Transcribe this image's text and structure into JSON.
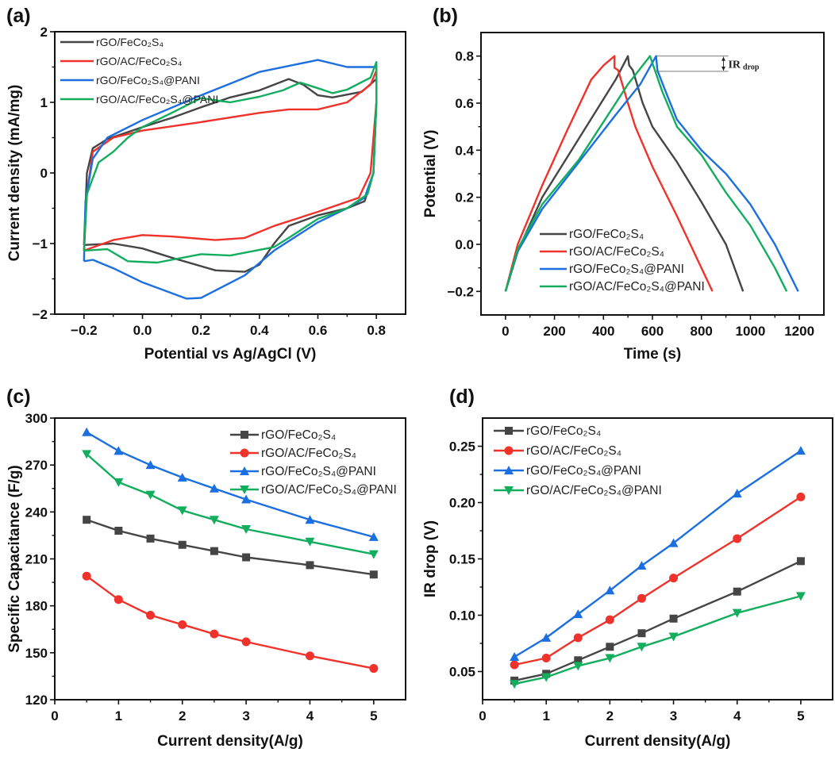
{
  "colors": {
    "rGO/FeCo2S4": "#454545",
    "rGO/AC/FeCo2S4": "#f0322c",
    "rGO/FeCo2S4@PANI": "#1c6fe0",
    "rGO/AC/FeCo2S4@PANI": "#12ae5e"
  },
  "chart_data": [
    {
      "panel_label": "(a)",
      "type": "line",
      "title": "",
      "xlabel": "Potential vs Ag/AgCl (V)",
      "ylabel": "Current density (mA/mg)",
      "xlim": [
        -0.3,
        0.9
      ],
      "ylim": [
        -2,
        2
      ],
      "xticks": [
        -0.2,
        0.0,
        0.2,
        0.4,
        0.6,
        0.8
      ],
      "xtick_labels": [
        "−0.2",
        "0.0",
        "0.2",
        "0.4",
        "0.6",
        "0.8"
      ],
      "yticks": [
        -2,
        -1,
        0,
        1,
        2
      ],
      "ytick_labels": [
        "−2",
        "−1",
        "0",
        "1",
        "2"
      ],
      "legend": "top-left",
      "markers": false,
      "series": [
        {
          "name": "rGO/FeCo₂S₄",
          "color_key": "rGO/FeCo2S4",
          "points": [
            [
              -0.2,
              -1.02
            ],
            [
              -0.19,
              0.0
            ],
            [
              -0.17,
              0.35
            ],
            [
              -0.12,
              0.48
            ],
            [
              0,
              0.65
            ],
            [
              0.1,
              0.78
            ],
            [
              0.2,
              0.93
            ],
            [
              0.3,
              1.07
            ],
            [
              0.4,
              1.17
            ],
            [
              0.5,
              1.33
            ],
            [
              0.55,
              1.25
            ],
            [
              0.6,
              1.1
            ],
            [
              0.65,
              1.07
            ],
            [
              0.75,
              1.15
            ],
            [
              0.8,
              1.33
            ],
            [
              0.8,
              1.0
            ],
            [
              0.79,
              0.0
            ],
            [
              0.76,
              -0.4
            ],
            [
              0.7,
              -0.5
            ],
            [
              0.6,
              -0.6
            ],
            [
              0.5,
              -0.75
            ],
            [
              0.45,
              -1.0
            ],
            [
              0.4,
              -1.3
            ],
            [
              0.35,
              -1.4
            ],
            [
              0.25,
              -1.38
            ],
            [
              0.1,
              -1.2
            ],
            [
              0.0,
              -1.07
            ],
            [
              -0.1,
              -1.0
            ],
            [
              -0.2,
              -1.02
            ]
          ]
        },
        {
          "name": "rGO/AC/FeCo₂S₄",
          "color_key": "rGO/AC/FeCo2S4",
          "points": [
            [
              -0.2,
              -1.1
            ],
            [
              -0.19,
              -0.3
            ],
            [
              -0.17,
              0.3
            ],
            [
              -0.1,
              0.5
            ],
            [
              0,
              0.6
            ],
            [
              0.2,
              0.72
            ],
            [
              0.4,
              0.85
            ],
            [
              0.5,
              0.9
            ],
            [
              0.6,
              0.9
            ],
            [
              0.7,
              1.0
            ],
            [
              0.78,
              1.25
            ],
            [
              0.8,
              1.45
            ],
            [
              0.8,
              1.0
            ],
            [
              0.78,
              0.0
            ],
            [
              0.74,
              -0.35
            ],
            [
              0.6,
              -0.55
            ],
            [
              0.45,
              -0.75
            ],
            [
              0.35,
              -0.92
            ],
            [
              0.25,
              -0.95
            ],
            [
              0.1,
              -0.9
            ],
            [
              0.0,
              -0.88
            ],
            [
              -0.1,
              -0.95
            ],
            [
              -0.2,
              -1.1
            ]
          ]
        },
        {
          "name": "rGO/FeCo₂S₄@PANI",
          "color_key": "rGO/FeCo2S4@PANI",
          "points": [
            [
              -0.2,
              -1.25
            ],
            [
              -0.195,
              -0.4
            ],
            [
              -0.17,
              0.2
            ],
            [
              -0.12,
              0.5
            ],
            [
              0,
              0.75
            ],
            [
              0.2,
              1.1
            ],
            [
              0.4,
              1.43
            ],
            [
              0.6,
              1.6
            ],
            [
              0.7,
              1.5
            ],
            [
              0.8,
              1.5
            ],
            [
              0.8,
              1.0
            ],
            [
              0.79,
              0.0
            ],
            [
              0.76,
              -0.35
            ],
            [
              0.7,
              -0.5
            ],
            [
              0.6,
              -0.7
            ],
            [
              0.45,
              -1.1
            ],
            [
              0.35,
              -1.45
            ],
            [
              0.2,
              -1.77
            ],
            [
              0.15,
              -1.78
            ],
            [
              0.0,
              -1.55
            ],
            [
              -0.1,
              -1.35
            ],
            [
              -0.17,
              -1.23
            ],
            [
              -0.2,
              -1.25
            ]
          ]
        },
        {
          "name": "rGO/AC/FeCo₂S₄@PANI",
          "color_key": "rGO/AC/FeCo2S4@PANI",
          "points": [
            [
              -0.2,
              -1.1
            ],
            [
              -0.19,
              -0.3
            ],
            [
              -0.15,
              0.15
            ],
            [
              -0.1,
              0.3
            ],
            [
              -0.05,
              0.5
            ],
            [
              0.0,
              0.65
            ],
            [
              0.1,
              0.85
            ],
            [
              0.2,
              1.06
            ],
            [
              0.3,
              1.0
            ],
            [
              0.4,
              1.08
            ],
            [
              0.48,
              1.17
            ],
            [
              0.54,
              1.28
            ],
            [
              0.6,
              1.2
            ],
            [
              0.65,
              1.13
            ],
            [
              0.7,
              1.18
            ],
            [
              0.78,
              1.35
            ],
            [
              0.8,
              1.57
            ],
            [
              0.8,
              1.0
            ],
            [
              0.79,
              0.0
            ],
            [
              0.77,
              -0.3
            ],
            [
              0.7,
              -0.5
            ],
            [
              0.6,
              -0.65
            ],
            [
              0.5,
              -0.92
            ],
            [
              0.45,
              -1.05
            ],
            [
              0.3,
              -1.17
            ],
            [
              0.2,
              -1.15
            ],
            [
              0.05,
              -1.27
            ],
            [
              -0.05,
              -1.25
            ],
            [
              -0.12,
              -1.08
            ],
            [
              -0.2,
              -1.1
            ]
          ]
        }
      ]
    },
    {
      "panel_label": "(b)",
      "type": "line",
      "title": "",
      "xlabel": "Time (s)",
      "ylabel": "Potential (V)",
      "xlim": [
        -100,
        1300
      ],
      "ylim": [
        -0.3,
        0.9
      ],
      "xticks": [
        0,
        200,
        400,
        600,
        800,
        1000,
        1200
      ],
      "xtick_labels": [
        "0",
        "200",
        "400",
        "600",
        "800",
        "1000",
        "1200"
      ],
      "yticks": [
        -0.2,
        0.0,
        0.2,
        0.4,
        0.6,
        0.8
      ],
      "ytick_labels": [
        "−0.2",
        "0.0",
        "0.2",
        "0.4",
        "0.6",
        "0.8"
      ],
      "legend": "bottom-center",
      "markers": false,
      "annotation": {
        "text": "IR",
        "subscript": "drop",
        "from": [
          615,
          0.8
        ],
        "to": [
          615,
          0.735
        ]
      },
      "series": [
        {
          "name": "rGO/FeCo₂S₄",
          "color_key": "rGO/FeCo2S4",
          "points": [
            [
              0,
              -0.2
            ],
            [
              50,
              -0.03
            ],
            [
              150,
              0.2
            ],
            [
              300,
              0.45
            ],
            [
              450,
              0.7
            ],
            [
              500,
              0.8
            ],
            [
              505,
              0.76
            ],
            [
              520,
              0.74
            ],
            [
              560,
              0.6
            ],
            [
              600,
              0.5
            ],
            [
              700,
              0.35
            ],
            [
              800,
              0.18
            ],
            [
              900,
              0.0
            ],
            [
              970,
              -0.2
            ]
          ]
        },
        {
          "name": "rGO/AC/FeCo₂S₄",
          "color_key": "rGO/AC/FeCo2S4",
          "points": [
            [
              0,
              -0.2
            ],
            [
              50,
              0.0
            ],
            [
              150,
              0.25
            ],
            [
              250,
              0.48
            ],
            [
              350,
              0.7
            ],
            [
              400,
              0.76
            ],
            [
              445,
              0.8
            ],
            [
              445,
              0.75
            ],
            [
              460,
              0.74
            ],
            [
              500,
              0.6
            ],
            [
              530,
              0.5
            ],
            [
              600,
              0.33
            ],
            [
              700,
              0.12
            ],
            [
              800,
              -0.1
            ],
            [
              845,
              -0.2
            ]
          ]
        },
        {
          "name": "rGO/FeCo₂S₄@PANI",
          "color_key": "rGO/FeCo2S4@PANI",
          "points": [
            [
              0,
              -0.2
            ],
            [
              50,
              -0.03
            ],
            [
              150,
              0.15
            ],
            [
              300,
              0.35
            ],
            [
              450,
              0.55
            ],
            [
              550,
              0.68
            ],
            [
              615,
              0.8
            ],
            [
              620,
              0.74
            ],
            [
              650,
              0.66
            ],
            [
              700,
              0.53
            ],
            [
              800,
              0.4
            ],
            [
              900,
              0.3
            ],
            [
              1000,
              0.17
            ],
            [
              1100,
              0.0
            ],
            [
              1195,
              -0.2
            ]
          ]
        },
        {
          "name": "rGO/AC/FeCo₂S₄@PANI",
          "color_key": "rGO/AC/FeCo2S4@PANI",
          "points": [
            [
              0,
              -0.2
            ],
            [
              50,
              -0.02
            ],
            [
              150,
              0.17
            ],
            [
              300,
              0.36
            ],
            [
              400,
              0.52
            ],
            [
              500,
              0.68
            ],
            [
              590,
              0.8
            ],
            [
              600,
              0.77
            ],
            [
              640,
              0.65
            ],
            [
              700,
              0.5
            ],
            [
              800,
              0.38
            ],
            [
              900,
              0.22
            ],
            [
              1000,
              0.08
            ],
            [
              1100,
              -0.1
            ],
            [
              1148,
              -0.2
            ]
          ]
        }
      ]
    },
    {
      "panel_label": "(c)",
      "type": "line",
      "title": "",
      "xlabel": "Current density(A/g)",
      "ylabel": "Specific Capacitance (F/g)",
      "xlim": [
        0,
        5.5
      ],
      "ylim": [
        120,
        300
      ],
      "xticks": [
        0,
        1,
        2,
        3,
        4,
        5
      ],
      "xtick_labels": [
        "0",
        "1",
        "2",
        "3",
        "4",
        "5"
      ],
      "yticks": [
        120,
        150,
        180,
        210,
        240,
        270,
        300
      ],
      "ytick_labels": [
        "120",
        "150",
        "180",
        "210",
        "240",
        "270",
        "300"
      ],
      "legend": "top-right",
      "markers": true,
      "x": [
        0.5,
        1,
        1.5,
        2,
        2.5,
        3,
        4,
        5
      ],
      "series": [
        {
          "name": "rGO/FeCo₂S₄",
          "color_key": "rGO/FeCo2S4",
          "marker": "square",
          "values": [
            235,
            228,
            223,
            219,
            215,
            211,
            206,
            200
          ]
        },
        {
          "name": "rGO/AC/FeCo₂S₄",
          "color_key": "rGO/AC/FeCo2S4",
          "marker": "circle",
          "values": [
            199,
            184,
            174,
            168,
            162,
            157,
            148,
            140
          ]
        },
        {
          "name": "rGO/FeCo₂S₄@PANI",
          "color_key": "rGO/FeCo2S4@PANI",
          "marker": "triangle-up",
          "values": [
            291,
            279,
            270,
            262,
            255,
            248,
            235,
            224
          ]
        },
        {
          "name": "rGO/AC/FeCo₂S₄@PANI",
          "color_key": "rGO/AC/FeCo2S4@PANI",
          "marker": "triangle-down",
          "values": [
            277,
            259,
            251,
            241,
            235,
            229,
            221,
            213
          ]
        }
      ]
    },
    {
      "panel_label": "(d)",
      "type": "line",
      "title": "",
      "xlabel": "Current density(A/g)",
      "ylabel": "IR drop (V)",
      "xlim": [
        0,
        5.5
      ],
      "ylim": [
        0.025,
        0.275
      ],
      "xticks": [
        0,
        1,
        2,
        3,
        4,
        5
      ],
      "xtick_labels": [
        "0",
        "1",
        "2",
        "3",
        "4",
        "5"
      ],
      "yticks": [
        0.05,
        0.1,
        0.15,
        0.2,
        0.25
      ],
      "ytick_labels": [
        "0.05",
        "0.10",
        "0.15",
        "0.20",
        "0.25"
      ],
      "legend": "top-left",
      "markers": true,
      "x": [
        0.5,
        1,
        1.5,
        2,
        2.5,
        3,
        4,
        5
      ],
      "series": [
        {
          "name": "rGO/FeCo₂S₄",
          "color_key": "rGO/FeCo2S4",
          "marker": "square",
          "values": [
            0.042,
            0.048,
            0.06,
            0.072,
            0.084,
            0.097,
            0.121,
            0.148
          ]
        },
        {
          "name": "rGO/AC/FeCo₂S₄",
          "color_key": "rGO/AC/FeCo2S4",
          "marker": "circle",
          "values": [
            0.056,
            0.062,
            0.08,
            0.096,
            0.115,
            0.133,
            0.168,
            0.205
          ]
        },
        {
          "name": "rGO/FeCo₂S₄@PANI",
          "color_key": "rGO/FeCo2S4@PANI",
          "marker": "triangle-up",
          "values": [
            0.063,
            0.08,
            0.101,
            0.122,
            0.144,
            0.164,
            0.208,
            0.246
          ]
        },
        {
          "name": "rGO/AC/FeCo₂S₄@PANI",
          "color_key": "rGO/AC/FeCo2S4@PANI",
          "marker": "triangle-down",
          "values": [
            0.039,
            0.045,
            0.055,
            0.062,
            0.072,
            0.081,
            0.102,
            0.117
          ]
        }
      ]
    }
  ]
}
